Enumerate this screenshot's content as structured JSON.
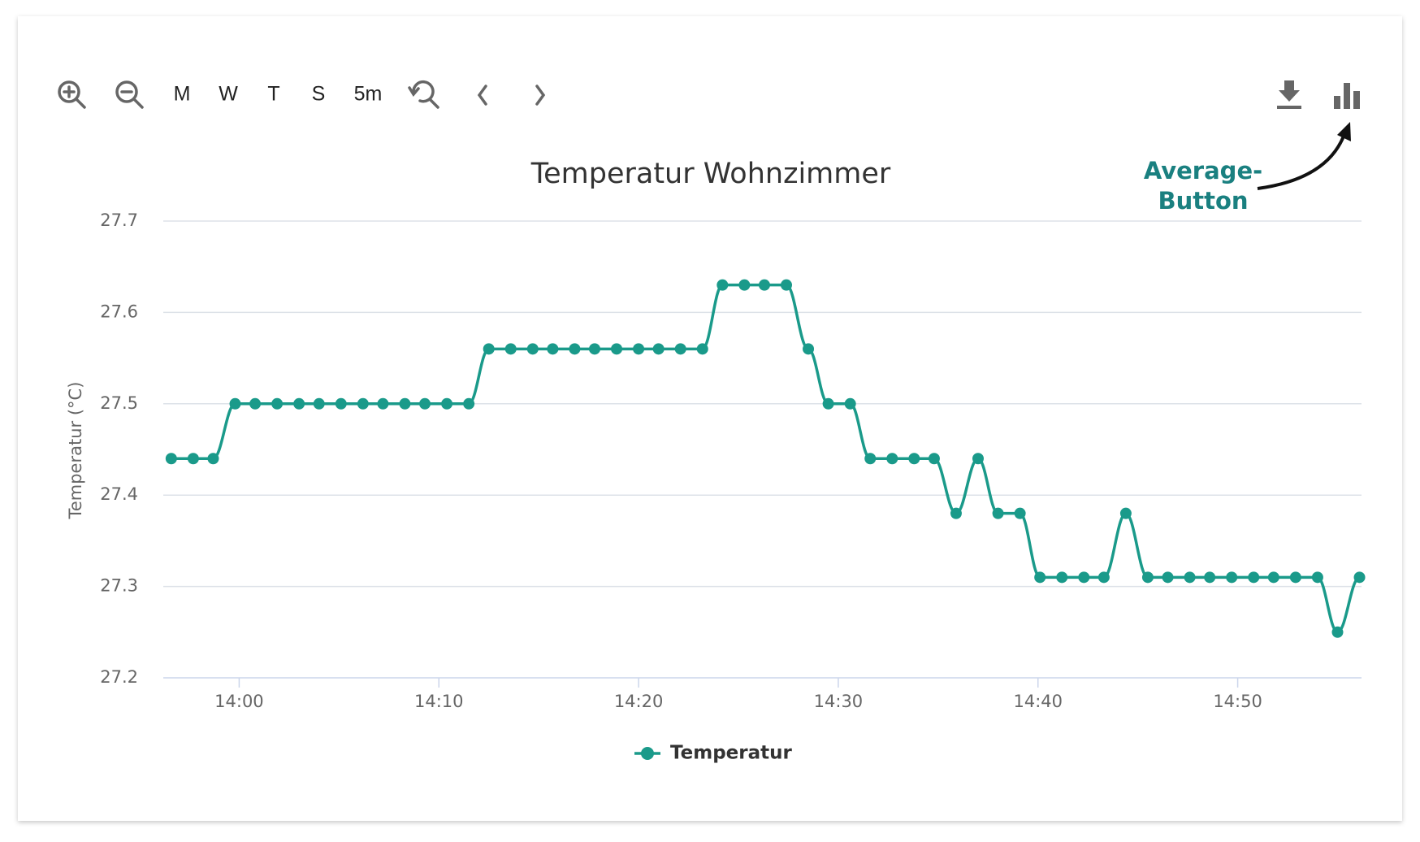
{
  "chart_data": {
    "type": "line",
    "title": "Temperatur Wohnzimmer",
    "toolbar_buttons": [
      "M",
      "W",
      "T",
      "S",
      "5m"
    ],
    "annotation": [
      "Average-",
      "Button"
    ],
    "ylabel": "Temperatur (°C)",
    "x": [
      836.6,
      837.7,
      838.7,
      839.8,
      840.8,
      841.9,
      843.0,
      844.0,
      845.1,
      846.2,
      847.2,
      848.3,
      849.3,
      850.4,
      851.5,
      852.5,
      853.6,
      854.7,
      855.7,
      856.8,
      857.8,
      858.9,
      860.0,
      861.0,
      862.1,
      863.2,
      864.2,
      865.3,
      866.3,
      867.4,
      868.5,
      869.5,
      870.6,
      871.6,
      872.7,
      873.8,
      874.8,
      875.9,
      877.0,
      878.0,
      879.1,
      880.1,
      881.2,
      882.3,
      883.3,
      884.4,
      885.5,
      886.5,
      887.6,
      888.6,
      889.7,
      890.8,
      891.8,
      892.9,
      894.0,
      895.0,
      896.1
    ],
    "series": [
      {
        "name": "Temperatur",
        "color": "#1a9a8a",
        "values": [
          27.44,
          27.44,
          27.44,
          27.5,
          27.5,
          27.5,
          27.5,
          27.5,
          27.5,
          27.5,
          27.5,
          27.5,
          27.5,
          27.5,
          27.5,
          27.56,
          27.56,
          27.56,
          27.56,
          27.56,
          27.56,
          27.56,
          27.56,
          27.56,
          27.56,
          27.56,
          27.63,
          27.63,
          27.63,
          27.63,
          27.56,
          27.5,
          27.5,
          27.44,
          27.44,
          27.44,
          27.44,
          27.38,
          27.44,
          27.38,
          27.38,
          27.31,
          27.31,
          27.31,
          27.31,
          27.38,
          27.31,
          27.31,
          27.31,
          27.31,
          27.31,
          27.31,
          27.31,
          27.31,
          27.31,
          27.25,
          27.31
        ]
      }
    ],
    "xlim": [
      836.2,
      896.2
    ],
    "xticks": [
      {
        "value": 840,
        "label": "14:00"
      },
      {
        "value": 850,
        "label": "14:10"
      },
      {
        "value": 860,
        "label": "14:20"
      },
      {
        "value": 870,
        "label": "14:30"
      },
      {
        "value": 880,
        "label": "14:40"
      },
      {
        "value": 890,
        "label": "14:50"
      }
    ],
    "ylim": [
      27.2,
      27.7
    ],
    "yticks": [
      27.2,
      27.3,
      27.4,
      27.5,
      27.6,
      27.7
    ],
    "grid": true
  }
}
